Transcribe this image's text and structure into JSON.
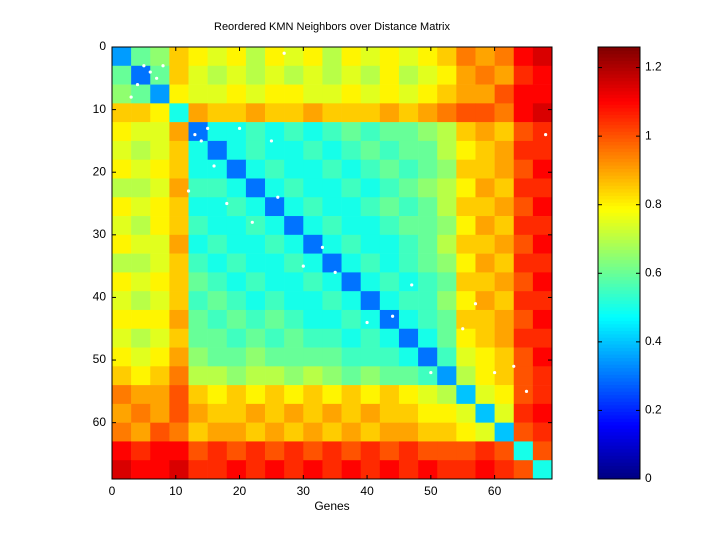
{
  "chart_data": {
    "type": "heatmap",
    "title": "Reordered KMN Neighbors over Distance Matrix",
    "xlabel": "Genes",
    "colormap": "jet",
    "x_edges": [
      0,
      3,
      6,
      9,
      12,
      15,
      18,
      21,
      24,
      27,
      30,
      33,
      36,
      39,
      42,
      45,
      48,
      51,
      54,
      57,
      60,
      63,
      66,
      69
    ],
    "y_edges": [
      0,
      3,
      6,
      9,
      12,
      15,
      18,
      21,
      24,
      27,
      30,
      33,
      36,
      39,
      42,
      45,
      48,
      51,
      54,
      57,
      60,
      63,
      66,
      69
    ],
    "xlim": [
      0,
      69
    ],
    "ylim": [
      0,
      69
    ],
    "y_reversed": true,
    "xticks": [
      0,
      10,
      20,
      30,
      40,
      50,
      60
    ],
    "yticks": [
      0,
      10,
      20,
      30,
      40,
      50,
      60
    ],
    "clim": [
      0,
      1.26
    ],
    "cticks": [
      0,
      0.2,
      0.4,
      0.6,
      0.8,
      1,
      1.2
    ],
    "z": [
      [
        0.35,
        0.6,
        0.65,
        0.85,
        0.8,
        0.75,
        0.8,
        0.7,
        0.8,
        0.75,
        0.8,
        0.7,
        0.8,
        0.75,
        0.8,
        0.75,
        0.8,
        0.85,
        0.95,
        0.9,
        0.95,
        1.1,
        1.15
      ],
      [
        0.6,
        0.3,
        0.6,
        0.85,
        0.75,
        0.7,
        0.75,
        0.7,
        0.75,
        0.7,
        0.75,
        0.7,
        0.75,
        0.7,
        0.8,
        0.7,
        0.75,
        0.8,
        0.9,
        0.95,
        0.9,
        1.05,
        1.1
      ],
      [
        0.65,
        0.6,
        0.35,
        0.8,
        0.75,
        0.75,
        0.8,
        0.75,
        0.8,
        0.8,
        0.75,
        0.75,
        0.8,
        0.75,
        0.8,
        0.75,
        0.8,
        0.85,
        0.9,
        0.9,
        1.0,
        1.1,
        1.1
      ],
      [
        0.85,
        0.85,
        0.8,
        0.5,
        0.9,
        0.85,
        0.85,
        0.9,
        0.85,
        0.85,
        0.9,
        0.85,
        0.85,
        0.85,
        0.9,
        0.85,
        0.9,
        0.95,
        1.0,
        1.0,
        0.95,
        1.1,
        1.15
      ],
      [
        0.8,
        0.75,
        0.75,
        0.9,
        0.3,
        0.5,
        0.5,
        0.55,
        0.5,
        0.55,
        0.5,
        0.55,
        0.6,
        0.55,
        0.6,
        0.6,
        0.65,
        0.7,
        0.85,
        0.9,
        0.85,
        1.0,
        1.05
      ],
      [
        0.75,
        0.7,
        0.75,
        0.85,
        0.5,
        0.3,
        0.5,
        0.55,
        0.5,
        0.5,
        0.55,
        0.5,
        0.55,
        0.6,
        0.55,
        0.6,
        0.6,
        0.7,
        0.8,
        0.85,
        0.9,
        1.05,
        1.05
      ],
      [
        0.8,
        0.75,
        0.8,
        0.85,
        0.5,
        0.5,
        0.3,
        0.5,
        0.55,
        0.5,
        0.5,
        0.55,
        0.5,
        0.55,
        0.6,
        0.55,
        0.6,
        0.65,
        0.85,
        0.85,
        0.9,
        1.0,
        1.1
      ],
      [
        0.7,
        0.7,
        0.75,
        0.9,
        0.55,
        0.55,
        0.5,
        0.3,
        0.5,
        0.55,
        0.5,
        0.5,
        0.55,
        0.5,
        0.55,
        0.6,
        0.65,
        0.7,
        0.8,
        0.9,
        0.85,
        1.05,
        1.05
      ],
      [
        0.8,
        0.75,
        0.8,
        0.85,
        0.5,
        0.5,
        0.55,
        0.5,
        0.3,
        0.5,
        0.55,
        0.5,
        0.5,
        0.55,
        0.6,
        0.55,
        0.6,
        0.7,
        0.85,
        0.85,
        0.9,
        1.0,
        1.1
      ],
      [
        0.75,
        0.7,
        0.8,
        0.85,
        0.55,
        0.5,
        0.5,
        0.55,
        0.5,
        0.3,
        0.5,
        0.55,
        0.5,
        0.5,
        0.55,
        0.6,
        0.6,
        0.65,
        0.8,
        0.9,
        0.85,
        1.05,
        1.05
      ],
      [
        0.8,
        0.75,
        0.75,
        0.9,
        0.5,
        0.55,
        0.5,
        0.5,
        0.55,
        0.5,
        0.3,
        0.5,
        0.55,
        0.5,
        0.5,
        0.55,
        0.6,
        0.7,
        0.85,
        0.85,
        0.9,
        1.0,
        1.1
      ],
      [
        0.7,
        0.7,
        0.75,
        0.85,
        0.55,
        0.5,
        0.55,
        0.5,
        0.5,
        0.55,
        0.5,
        0.3,
        0.5,
        0.55,
        0.5,
        0.55,
        0.6,
        0.65,
        0.8,
        0.9,
        0.85,
        1.05,
        1.05
      ],
      [
        0.8,
        0.75,
        0.8,
        0.85,
        0.6,
        0.55,
        0.5,
        0.55,
        0.5,
        0.5,
        0.55,
        0.5,
        0.3,
        0.5,
        0.55,
        0.5,
        0.55,
        0.6,
        0.85,
        0.85,
        0.9,
        1.0,
        1.1
      ],
      [
        0.75,
        0.7,
        0.75,
        0.85,
        0.55,
        0.6,
        0.55,
        0.5,
        0.55,
        0.5,
        0.5,
        0.55,
        0.5,
        0.3,
        0.5,
        0.55,
        0.55,
        0.65,
        0.8,
        0.9,
        0.85,
        1.05,
        1.05
      ],
      [
        0.8,
        0.8,
        0.8,
        0.9,
        0.6,
        0.55,
        0.6,
        0.55,
        0.6,
        0.55,
        0.5,
        0.5,
        0.55,
        0.5,
        0.3,
        0.5,
        0.55,
        0.6,
        0.85,
        0.85,
        0.9,
        1.0,
        1.1
      ],
      [
        0.75,
        0.7,
        0.75,
        0.85,
        0.6,
        0.6,
        0.55,
        0.6,
        0.55,
        0.6,
        0.55,
        0.55,
        0.5,
        0.55,
        0.5,
        0.3,
        0.5,
        0.6,
        0.8,
        0.85,
        0.9,
        1.05,
        1.05
      ],
      [
        0.8,
        0.75,
        0.8,
        0.9,
        0.65,
        0.6,
        0.6,
        0.65,
        0.6,
        0.6,
        0.6,
        0.6,
        0.55,
        0.55,
        0.55,
        0.5,
        0.3,
        0.55,
        0.75,
        0.8,
        0.85,
        1.0,
        1.1
      ],
      [
        0.85,
        0.8,
        0.85,
        0.95,
        0.7,
        0.7,
        0.65,
        0.7,
        0.7,
        0.65,
        0.7,
        0.65,
        0.6,
        0.65,
        0.6,
        0.6,
        0.55,
        0.35,
        0.7,
        0.8,
        0.85,
        1.0,
        1.05
      ],
      [
        0.95,
        0.9,
        0.9,
        1.0,
        0.85,
        0.8,
        0.85,
        0.8,
        0.85,
        0.8,
        0.85,
        0.8,
        0.85,
        0.8,
        0.85,
        0.8,
        0.75,
        0.7,
        0.4,
        0.75,
        0.8,
        1.0,
        1.05
      ],
      [
        0.9,
        0.95,
        0.9,
        1.0,
        0.9,
        0.85,
        0.85,
        0.9,
        0.85,
        0.9,
        0.85,
        0.9,
        0.85,
        0.9,
        0.85,
        0.85,
        0.8,
        0.8,
        0.75,
        0.4,
        0.75,
        1.05,
        1.1
      ],
      [
        0.95,
        0.9,
        1.0,
        0.95,
        0.85,
        0.9,
        0.9,
        0.85,
        0.9,
        0.85,
        0.9,
        0.85,
        0.9,
        0.85,
        0.9,
        0.9,
        0.85,
        0.85,
        0.8,
        0.75,
        0.4,
        1.0,
        1.05
      ],
      [
        1.1,
        1.05,
        1.1,
        1.1,
        1.0,
        1.05,
        1.0,
        1.05,
        1.0,
        1.05,
        1.0,
        1.05,
        1.0,
        1.05,
        1.0,
        1.05,
        1.0,
        1.0,
        1.0,
        1.05,
        1.0,
        0.5,
        1.0
      ],
      [
        1.15,
        1.1,
        1.1,
        1.15,
        1.05,
        1.05,
        1.1,
        1.05,
        1.1,
        1.05,
        1.1,
        1.05,
        1.1,
        1.05,
        1.1,
        1.05,
        1.1,
        1.05,
        1.05,
        1.1,
        1.05,
        1.0,
        0.5
      ]
    ],
    "neighbors": {
      "color": "#ffffff",
      "x": [
        5,
        6,
        7,
        4,
        13,
        14,
        15,
        16,
        12,
        20,
        25,
        27,
        30,
        33,
        40,
        44,
        47,
        50,
        57,
        60,
        63,
        65,
        68,
        18,
        22,
        3,
        8,
        55,
        26,
        35
      ],
      "y": [
        3,
        4,
        5,
        6,
        14,
        15,
        13,
        19,
        23,
        13,
        15,
        1,
        35,
        32,
        44,
        43,
        38,
        52,
        41,
        52,
        51,
        55,
        14,
        25,
        28,
        8,
        3,
        45,
        24,
        36
      ]
    }
  }
}
